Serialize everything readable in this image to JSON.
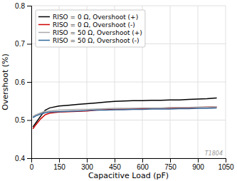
{
  "chart_data": {
    "type": "line",
    "xlabel": "Capacitive Load (pF)",
    "ylabel": "Overshoot (%)",
    "xlim": [
      0,
      1050
    ],
    "ylim": [
      0.4,
      0.8
    ],
    "xticks": [
      0,
      150,
      300,
      450,
      600,
      750,
      900,
      1050
    ],
    "yticks": [
      0.4,
      0.5,
      0.6,
      0.7,
      0.8
    ],
    "grid": true,
    "legend": "upper-left",
    "annotations": [
      "T1804"
    ],
    "x": [
      10,
      25,
      50,
      75,
      100,
      150,
      200,
      250,
      300,
      350,
      400,
      450,
      500,
      550,
      600,
      650,
      700,
      750,
      800,
      850,
      900,
      950,
      1000
    ],
    "series": [
      {
        "name": "RISO = 0 Ω, Overshoot (+)",
        "color": "#000000",
        "values": [
          0.483,
          0.493,
          0.51,
          0.526,
          0.532,
          0.537,
          0.539,
          0.541,
          0.543,
          0.545,
          0.547,
          0.549,
          0.55,
          0.551,
          0.551,
          0.552,
          0.552,
          0.553,
          0.553,
          0.554,
          0.555,
          0.556,
          0.558
        ]
      },
      {
        "name": "RISO = 0 Ω, Overshoot (-)",
        "color": "#cc0000",
        "values": [
          0.478,
          0.488,
          0.503,
          0.514,
          0.518,
          0.521,
          0.522,
          0.523,
          0.524,
          0.526,
          0.527,
          0.528,
          0.529,
          0.53,
          0.53,
          0.531,
          0.531,
          0.531,
          0.532,
          0.532,
          0.533,
          0.534,
          0.535
        ]
      },
      {
        "name": "RISO = 50 Ω, Overshoot (+)",
        "color": "#aaaaaa",
        "values": [
          0.51,
          0.514,
          0.519,
          0.523,
          0.524,
          0.526,
          0.527,
          0.528,
          0.528,
          0.529,
          0.53,
          0.531,
          0.531,
          0.531,
          0.532,
          0.532,
          0.532,
          0.533,
          0.533,
          0.533,
          0.534,
          0.534,
          0.535
        ]
      },
      {
        "name": "RISO = 50 Ω, Overshoot (-)",
        "color": "#336699",
        "values": [
          0.507,
          0.511,
          0.516,
          0.519,
          0.521,
          0.522,
          0.523,
          0.524,
          0.525,
          0.526,
          0.526,
          0.527,
          0.527,
          0.528,
          0.528,
          0.529,
          0.529,
          0.529,
          0.53,
          0.53,
          0.531,
          0.531,
          0.532
        ]
      }
    ]
  }
}
